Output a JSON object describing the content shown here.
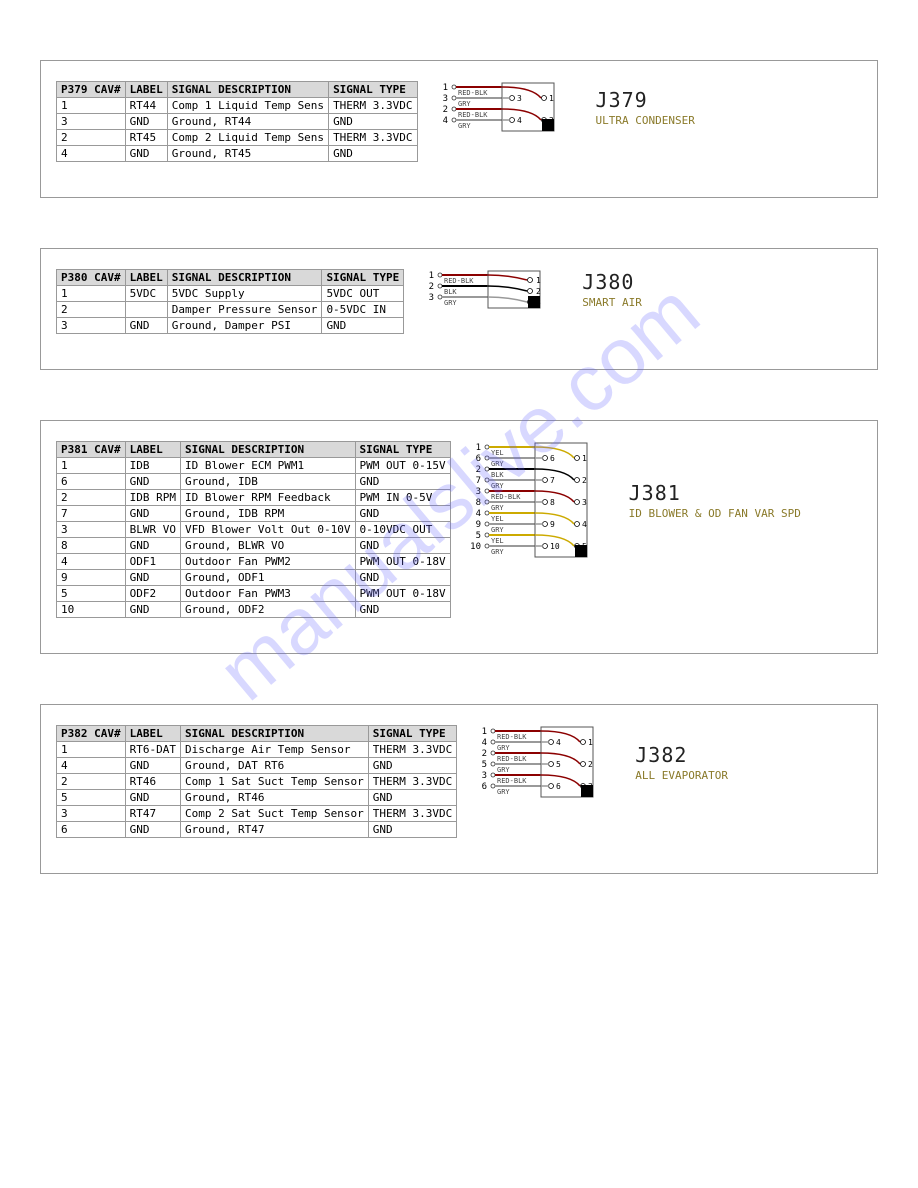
{
  "watermark": "manualslive.com",
  "panels": [
    {
      "id": "J379",
      "desc": "ULTRA CONDENSER",
      "header_cav": "P379 CAV#",
      "headers": [
        "LABEL",
        "SIGNAL DESCRIPTION",
        "SIGNAL TYPE"
      ],
      "rows": [
        {
          "cav": "1",
          "label": "RT44",
          "desc": "Comp 1 Liquid Temp Sens",
          "type": "THERM 3.3VDC"
        },
        {
          "cav": "3",
          "label": "GND",
          "desc": "Ground, RT44",
          "type": "GND"
        },
        {
          "cav": "2",
          "label": "RT45",
          "desc": "Comp 2 Liquid Temp Sens",
          "type": "THERM 3.3VDC"
        },
        {
          "cav": "4",
          "label": "GND",
          "desc": "Ground, RT45",
          "type": "GND"
        }
      ],
      "wires": [
        {
          "num": "1",
          "label": "RED-BLK",
          "color": "#8b0000"
        },
        {
          "num": "3",
          "label": "GRY",
          "color": "#999999"
        },
        {
          "num": "2",
          "label": "RED-BLK",
          "color": "#8b0000"
        },
        {
          "num": "4",
          "label": "GRY",
          "color": "#999999"
        }
      ],
      "conn_left": [
        "3",
        "4"
      ],
      "conn_right": [
        "1",
        "2"
      ]
    },
    {
      "id": "J380",
      "desc": "SMART AIR",
      "header_cav": "P380 CAV#",
      "headers": [
        "LABEL",
        "SIGNAL DESCRIPTION",
        "SIGNAL TYPE"
      ],
      "rows": [
        {
          "cav": "1",
          "label": "5VDC",
          "desc": "5VDC Supply",
          "type": "5VDC OUT"
        },
        {
          "cav": "2",
          "label": "",
          "desc": "Damper Pressure Sensor",
          "type": "0-5VDC IN"
        },
        {
          "cav": "3",
          "label": "GND",
          "desc": "Ground, Damper PSI",
          "type": "GND"
        }
      ],
      "wires": [
        {
          "num": "1",
          "label": "RED-BLK",
          "color": "#8b0000"
        },
        {
          "num": "2",
          "label": "BLK",
          "color": "#000000"
        },
        {
          "num": "3",
          "label": "GRY",
          "color": "#999999"
        }
      ],
      "conn_single": [
        "1",
        "2",
        "3"
      ]
    },
    {
      "id": "J381",
      "desc": "ID BLOWER & OD FAN VAR SPD",
      "header_cav": "P381 CAV#",
      "headers": [
        "LABEL",
        "SIGNAL DESCRIPTION",
        "SIGNAL TYPE"
      ],
      "rows": [
        {
          "cav": "1",
          "label": "IDB",
          "desc": "ID Blower ECM PWM1",
          "type": "PWM OUT 0-15V"
        },
        {
          "cav": "6",
          "label": "GND",
          "desc": "Ground, IDB",
          "type": "GND"
        },
        {
          "cav": "2",
          "label": "IDB RPM",
          "desc": "ID Blower RPM Feedback",
          "type": "PWM IN 0-5V"
        },
        {
          "cav": "7",
          "label": "GND",
          "desc": "Ground, IDB RPM",
          "type": "GND"
        },
        {
          "cav": "3",
          "label": "BLWR VO",
          "desc": "VFD Blower Volt Out 0-10V",
          "type": "0-10VDC OUT"
        },
        {
          "cav": "8",
          "label": "GND",
          "desc": "Ground, BLWR VO",
          "type": "GND"
        },
        {
          "cav": "4",
          "label": "ODF1",
          "desc": "Outdoor Fan PWM2",
          "type": "PWM OUT 0-18V"
        },
        {
          "cav": "9",
          "label": "GND",
          "desc": "Ground, ODF1",
          "type": "GND"
        },
        {
          "cav": "5",
          "label": "ODF2",
          "desc": "Outdoor Fan PWM3",
          "type": "PWM OUT 0-18V"
        },
        {
          "cav": "10",
          "label": "GND",
          "desc": "Ground, ODF2",
          "type": "GND"
        }
      ],
      "wires": [
        {
          "num": "1",
          "label": "YEL",
          "color": "#ccaa00"
        },
        {
          "num": "6",
          "label": "GRY",
          "color": "#999999"
        },
        {
          "num": "2",
          "label": "BLK",
          "color": "#000000"
        },
        {
          "num": "7",
          "label": "GRY",
          "color": "#999999"
        },
        {
          "num": "3",
          "label": "RED-BLK",
          "color": "#8b0000"
        },
        {
          "num": "8",
          "label": "GRY",
          "color": "#999999"
        },
        {
          "num": "4",
          "label": "YEL",
          "color": "#ccaa00"
        },
        {
          "num": "9",
          "label": "GRY",
          "color": "#999999"
        },
        {
          "num": "5",
          "label": "YEL",
          "color": "#ccaa00"
        },
        {
          "num": "10",
          "label": "GRY",
          "color": "#999999"
        }
      ],
      "conn_left": [
        "6",
        "7",
        "8",
        "9",
        "10"
      ],
      "conn_right": [
        "1",
        "2",
        "3",
        "4",
        "5"
      ]
    },
    {
      "id": "J382",
      "desc": "ALL EVAPORATOR",
      "header_cav": "P382 CAV#",
      "headers": [
        "LABEL",
        "SIGNAL DESCRIPTION",
        "SIGNAL TYPE"
      ],
      "rows": [
        {
          "cav": "1",
          "label": "RT6-DAT",
          "desc": "Discharge Air Temp Sensor",
          "type": "THERM 3.3VDC"
        },
        {
          "cav": "4",
          "label": "GND",
          "desc": "Ground, DAT RT6",
          "type": "GND"
        },
        {
          "cav": "2",
          "label": "RT46",
          "desc": "Comp 1 Sat Suct Temp Sensor",
          "type": "THERM 3.3VDC"
        },
        {
          "cav": "5",
          "label": "GND",
          "desc": "Ground, RT46",
          "type": "GND"
        },
        {
          "cav": "3",
          "label": "RT47",
          "desc": "Comp 2 Sat Suct Temp Sensor",
          "type": "THERM 3.3VDC"
        },
        {
          "cav": "6",
          "label": "GND",
          "desc": "Ground, RT47",
          "type": "GND"
        }
      ],
      "wires": [
        {
          "num": "1",
          "label": "RED-BLK",
          "color": "#8b0000"
        },
        {
          "num": "4",
          "label": "GRY",
          "color": "#999999"
        },
        {
          "num": "2",
          "label": "RED-BLK",
          "color": "#8b0000"
        },
        {
          "num": "5",
          "label": "GRY",
          "color": "#999999"
        },
        {
          "num": "3",
          "label": "RED-BLK",
          "color": "#8b0000"
        },
        {
          "num": "6",
          "label": "GRY",
          "color": "#999999"
        }
      ],
      "conn_left": [
        "4",
        "5",
        "6"
      ],
      "conn_right": [
        "1",
        "2",
        "3"
      ]
    }
  ],
  "colors": {
    "header_bg": "#d9d9d9",
    "border": "#999999",
    "desc_color": "#8a7a2a",
    "id_color": "#222222"
  }
}
